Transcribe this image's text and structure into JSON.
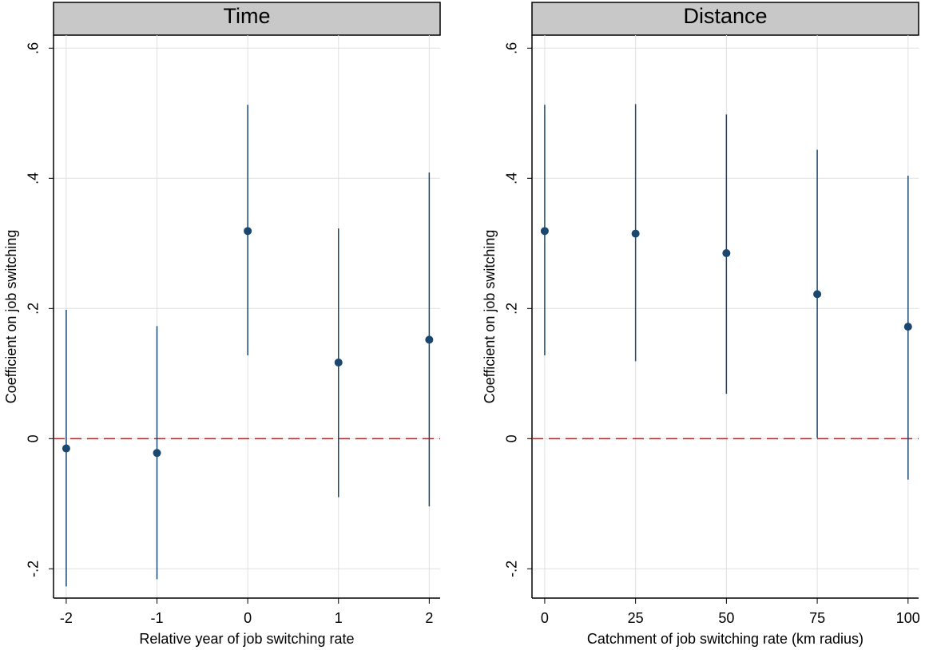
{
  "chart_data": [
    {
      "type": "scatter",
      "title": "Time",
      "xlabel": "Relative year of job switching rate",
      "ylabel": "Coefficient on job switching",
      "x": [
        -2,
        -1,
        0,
        1,
        2
      ],
      "values": [
        -0.015,
        -0.022,
        0.319,
        0.117,
        0.152
      ],
      "ci_low": [
        -0.227,
        -0.216,
        0.128,
        -0.09,
        -0.104
      ],
      "ci_high": [
        0.198,
        0.173,
        0.513,
        0.323,
        0.409
      ],
      "color": "#1a476f",
      "xlim": [
        -2.14,
        2.12
      ],
      "xticks": [
        -2,
        -1,
        0,
        1,
        2
      ],
      "ylim": [
        -0.245,
        0.62
      ],
      "yticks": [
        {
          "value": -0.2,
          "label": "-.2"
        },
        0,
        {
          "value": 0.2,
          "label": ".2"
        },
        {
          "value": 0.4,
          "label": ".4"
        },
        {
          "value": 0.6,
          "label": ".6"
        }
      ],
      "reference_line": {
        "value": 0,
        "color": "#ff0000"
      },
      "grid": true
    },
    {
      "type": "scatter",
      "title": "Distance",
      "xlabel": "Catchment of job switching rate (km radius)",
      "ylabel": "Coefficient on job switching",
      "x": [
        0,
        25,
        50,
        75,
        100
      ],
      "values": [
        0.319,
        0.315,
        0.285,
        0.222,
        0.172
      ],
      "ci_low": [
        0.128,
        0.119,
        0.069,
        0.001,
        -0.063
      ],
      "ci_high": [
        0.513,
        0.514,
        0.498,
        0.444,
        0.404
      ],
      "color": "#1a476f",
      "xlim": [
        -3.5,
        102.9
      ],
      "xticks": [
        0,
        25,
        50,
        75,
        100
      ],
      "ylim": [
        -0.245,
        0.62
      ],
      "yticks": [
        {
          "value": -0.2,
          "label": "-.2"
        },
        0,
        {
          "value": 0.2,
          "label": ".2"
        },
        {
          "value": 0.4,
          "label": ".4"
        },
        {
          "value": 0.6,
          "label": ".6"
        }
      ],
      "reference_line": {
        "value": 0,
        "color": "#ff0000"
      },
      "grid": true
    }
  ]
}
